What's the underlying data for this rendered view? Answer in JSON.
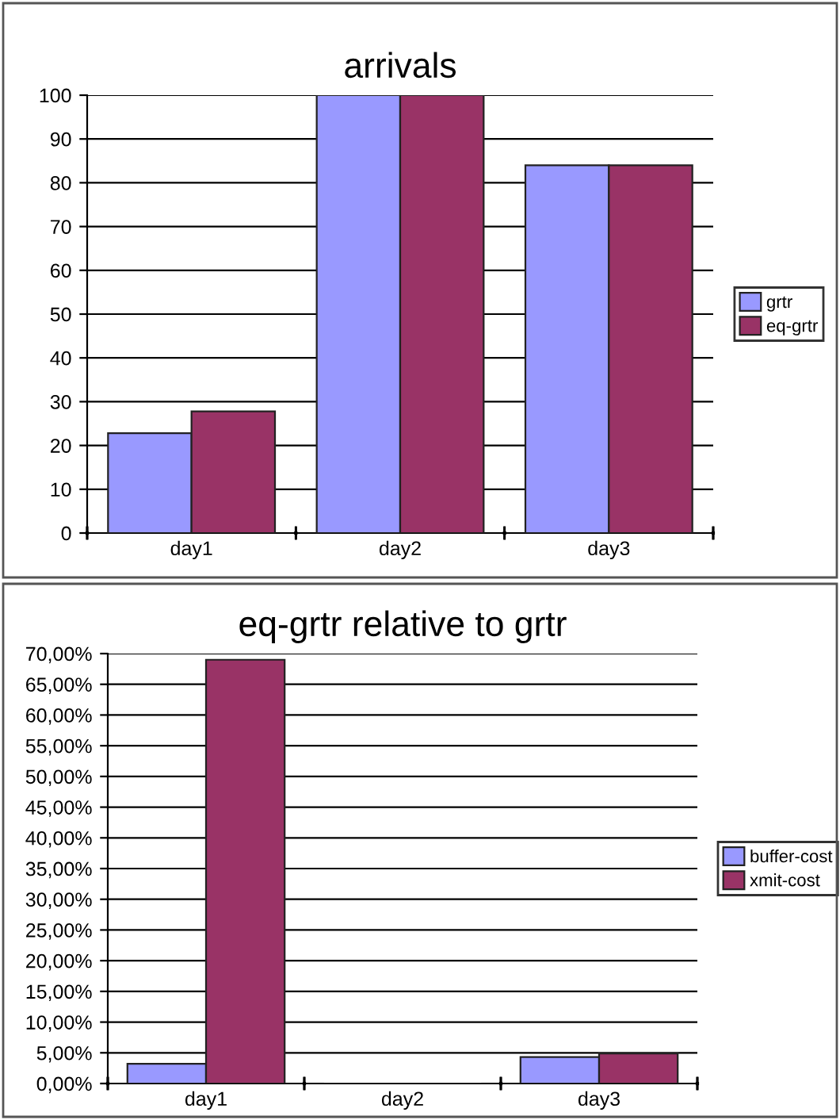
{
  "chart_data": [
    {
      "type": "bar",
      "title": "arrivals",
      "categories": [
        "day1",
        "day2",
        "day3"
      ],
      "series": [
        {
          "name": "grtr",
          "color": "#9999ff",
          "values": [
            22.8,
            100,
            84
          ]
        },
        {
          "name": "eq-grtr",
          "color": "#993366",
          "values": [
            27.8,
            100,
            84
          ]
        }
      ],
      "ylim": [
        0,
        100
      ],
      "yticks": [
        0,
        10,
        20,
        30,
        40,
        50,
        60,
        70,
        80,
        90,
        100
      ],
      "grid": "y",
      "legend": "right"
    },
    {
      "type": "bar",
      "title": "eq-grtr relative to grtr",
      "categories": [
        "day1",
        "day2",
        "day3"
      ],
      "series": [
        {
          "name": "buffer-cost",
          "color": "#9999ff",
          "values": [
            3.2,
            0,
            4.3
          ]
        },
        {
          "name": "xmit-cost",
          "color": "#993366",
          "values": [
            69,
            0,
            4.9
          ]
        }
      ],
      "ylim": [
        0,
        70
      ],
      "yticks": [
        {
          "value": 0,
          "label": "0,00%"
        },
        {
          "value": 5,
          "label": "5,00%"
        },
        {
          "value": 10,
          "label": "10,00%"
        },
        {
          "value": 15,
          "label": "15,00%"
        },
        {
          "value": 20,
          "label": "20,00%"
        },
        {
          "value": 25,
          "label": "25,00%"
        },
        {
          "value": 30,
          "label": "30,00%"
        },
        {
          "value": 35,
          "label": "35,00%"
        },
        {
          "value": 40,
          "label": "40,00%"
        },
        {
          "value": 45,
          "label": "45,00%"
        },
        {
          "value": 50,
          "label": "50,00%"
        },
        {
          "value": 55,
          "label": "55,00%"
        },
        {
          "value": 60,
          "label": "60,00%"
        },
        {
          "value": 65,
          "label": "65,00%"
        },
        {
          "value": 70,
          "label": "70,00%"
        }
      ],
      "grid": "y",
      "legend": "right"
    }
  ]
}
